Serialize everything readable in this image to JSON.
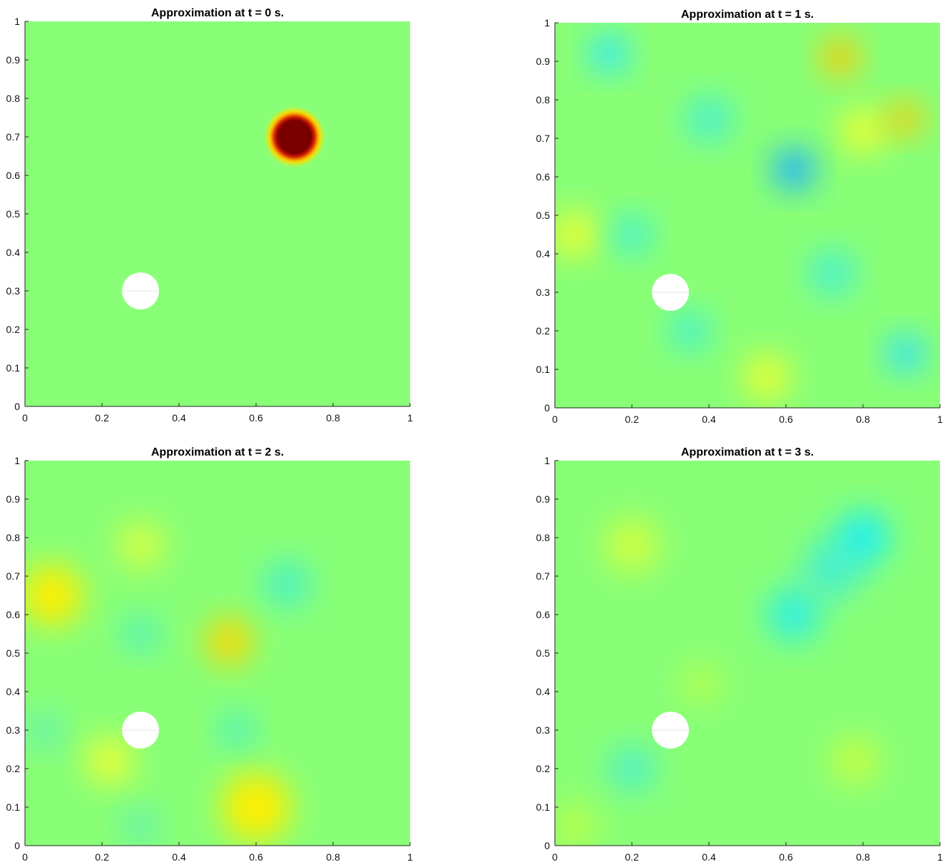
{
  "figure": {
    "colormap": "jet",
    "field_background": "#88ff77",
    "obstacle_color": "#ffffff"
  },
  "chart_data": [
    {
      "type": "heatmap",
      "title": "Approximation at t = 0 s.",
      "xlim": [
        0,
        1
      ],
      "ylim": [
        0,
        1
      ],
      "xticks": [
        "0",
        "0.2",
        "0.4",
        "0.6",
        "0.8",
        "1"
      ],
      "yticks": [
        "0",
        "0.1",
        "0.2",
        "0.3",
        "0.4",
        "0.5",
        "0.6",
        "0.7",
        "0.8",
        "0.9",
        "1"
      ],
      "grid": false,
      "obstacle": {
        "x": 0.3,
        "y": 0.3,
        "r": 0.048
      },
      "features": [
        {
          "x": 0.7,
          "y": 0.7,
          "r": 0.048,
          "color": "#7a0000"
        },
        {
          "x": 0.7,
          "y": 0.7,
          "r": 0.058,
          "color": "#e01800"
        },
        {
          "x": 0.7,
          "y": 0.7,
          "r": 0.072,
          "color": "#ffe000"
        }
      ]
    },
    {
      "type": "heatmap",
      "title": "Approximation at t = 1 s.",
      "xlim": [
        0,
        1
      ],
      "ylim": [
        0,
        1
      ],
      "xticks": [
        "0",
        "0.2",
        "0.4",
        "0.6",
        "0.8",
        "1"
      ],
      "yticks": [
        "0",
        "0.1",
        "0.2",
        "0.3",
        "0.4",
        "0.5",
        "0.6",
        "0.7",
        "0.8",
        "0.9",
        "1"
      ],
      "grid": false,
      "obstacle": {
        "x": 0.3,
        "y": 0.3,
        "r": 0.048
      },
      "features": [
        {
          "x": 0.14,
          "y": 0.92,
          "r": 0.05,
          "color": "#30e8ff"
        },
        {
          "x": 0.74,
          "y": 0.91,
          "r": 0.05,
          "color": "#ffc800"
        },
        {
          "x": 0.91,
          "y": 0.75,
          "r": 0.045,
          "color": "#ffc800"
        },
        {
          "x": 0.62,
          "y": 0.62,
          "r": 0.055,
          "color": "#20b0ff"
        },
        {
          "x": 0.91,
          "y": 0.14,
          "r": 0.05,
          "color": "#30e0ff"
        },
        {
          "x": 0.05,
          "y": 0.45,
          "r": 0.06,
          "color": "#eaff30"
        },
        {
          "x": 0.55,
          "y": 0.08,
          "r": 0.06,
          "color": "#eaff30"
        },
        {
          "x": 0.8,
          "y": 0.72,
          "r": 0.06,
          "color": "#eaff30"
        },
        {
          "x": 0.4,
          "y": 0.75,
          "r": 0.06,
          "color": "#48f0d0"
        },
        {
          "x": 0.72,
          "y": 0.35,
          "r": 0.06,
          "color": "#48f0d0"
        },
        {
          "x": 0.35,
          "y": 0.2,
          "r": 0.05,
          "color": "#40f0d8"
        },
        {
          "x": 0.2,
          "y": 0.45,
          "r": 0.05,
          "color": "#40f0d8"
        }
      ]
    },
    {
      "type": "heatmap",
      "title": "Approximation at t = 2 s.",
      "xlim": [
        0,
        1
      ],
      "ylim": [
        0,
        1
      ],
      "xticks": [
        "0",
        "0.2",
        "0.4",
        "0.6",
        "0.8",
        "1"
      ],
      "yticks": [
        "0",
        "0.1",
        "0.2",
        "0.3",
        "0.4",
        "0.5",
        "0.6",
        "0.7",
        "0.8",
        "0.9",
        "1"
      ],
      "grid": false,
      "obstacle": {
        "x": 0.3,
        "y": 0.3,
        "r": 0.048
      },
      "features": [
        {
          "x": 0.07,
          "y": 0.65,
          "r": 0.08,
          "color": "#ffee00"
        },
        {
          "x": 0.53,
          "y": 0.53,
          "r": 0.06,
          "color": "#ffd800"
        },
        {
          "x": 0.6,
          "y": 0.1,
          "r": 0.09,
          "color": "#ffee00"
        },
        {
          "x": 0.22,
          "y": 0.22,
          "r": 0.06,
          "color": "#f0ff30"
        },
        {
          "x": 0.3,
          "y": 0.78,
          "r": 0.06,
          "color": "#d8ff40"
        },
        {
          "x": 0.68,
          "y": 0.68,
          "r": 0.06,
          "color": "#48f0c8"
        },
        {
          "x": 0.3,
          "y": 0.55,
          "r": 0.045,
          "color": "#48f0c8"
        },
        {
          "x": 0.55,
          "y": 0.3,
          "r": 0.045,
          "color": "#48f0c8"
        },
        {
          "x": 0.05,
          "y": 0.3,
          "r": 0.045,
          "color": "#60f0b8"
        },
        {
          "x": 0.3,
          "y": 0.05,
          "r": 0.045,
          "color": "#60f0b8"
        }
      ]
    },
    {
      "type": "heatmap",
      "title": "Approximation at t = 3 s.",
      "xlim": [
        0,
        1
      ],
      "ylim": [
        0,
        1
      ],
      "xticks": [
        "0",
        "0.2",
        "0.4",
        "0.6",
        "0.8",
        "1"
      ],
      "yticks": [
        "0",
        "0.1",
        "0.2",
        "0.3",
        "0.4",
        "0.5",
        "0.6",
        "0.7",
        "0.8",
        "0.9",
        "1"
      ],
      "grid": false,
      "obstacle": {
        "x": 0.3,
        "y": 0.3,
        "r": 0.048
      },
      "features": [
        {
          "x": 0.8,
          "y": 0.8,
          "r": 0.07,
          "color": "#20f0f0"
        },
        {
          "x": 0.62,
          "y": 0.6,
          "r": 0.07,
          "color": "#30f0e0"
        },
        {
          "x": 0.72,
          "y": 0.72,
          "r": 0.08,
          "color": "#50f0c8"
        },
        {
          "x": 0.2,
          "y": 0.2,
          "r": 0.06,
          "color": "#50f0c8"
        },
        {
          "x": 0.2,
          "y": 0.78,
          "r": 0.07,
          "color": "#d0ff40"
        },
        {
          "x": 0.78,
          "y": 0.22,
          "r": 0.06,
          "color": "#c8ff40"
        },
        {
          "x": 0.38,
          "y": 0.42,
          "r": 0.05,
          "color": "#b8ff48"
        },
        {
          "x": 0.05,
          "y": 0.05,
          "r": 0.06,
          "color": "#b8ff48"
        }
      ]
    }
  ]
}
